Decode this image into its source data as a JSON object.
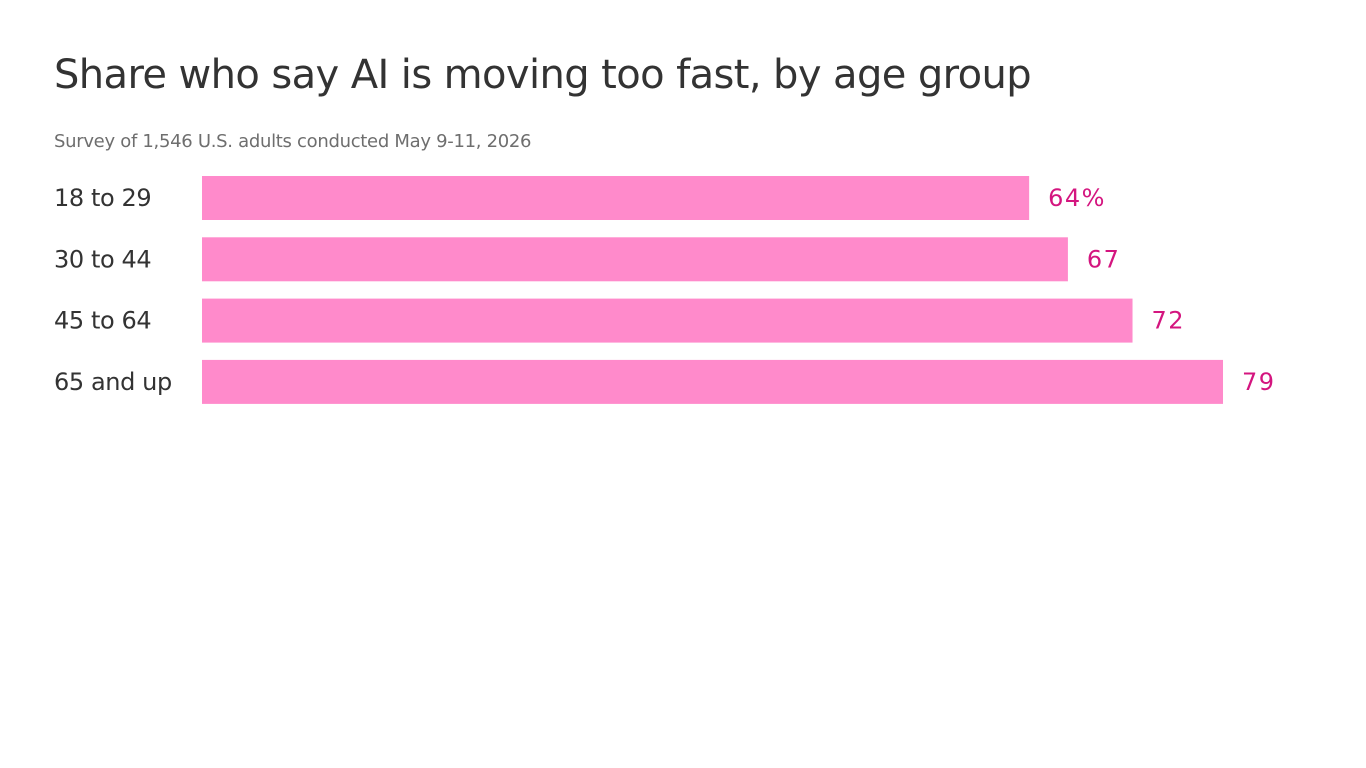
{
  "chart_data": {
    "type": "bar",
    "orientation": "horizontal",
    "title": "Share who say AI is moving too fast, by age group",
    "subtitle": "Survey of 1,546 U.S. adults conducted May 9-11, 2026",
    "categories": [
      "18 to 29",
      "30 to 44",
      "45 to 64",
      "65 and up"
    ],
    "values": [
      64,
      67,
      72,
      79
    ],
    "data_labels": [
      "64%",
      "67",
      "72",
      "79"
    ],
    "unit": "%",
    "xlim": [
      0,
      79
    ],
    "grid": false,
    "legend": "none",
    "colors": {
      "bar": "#ff8acb",
      "value_label": "#d4157f",
      "title": "#333333",
      "subtitle": "#6e6e6e"
    }
  }
}
